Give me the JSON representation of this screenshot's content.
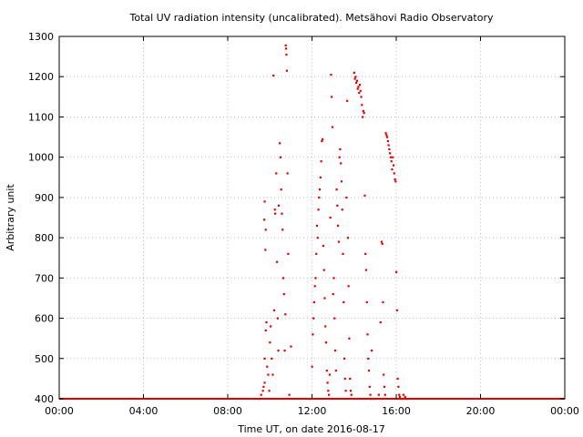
{
  "chart_data": {
    "type": "scatter",
    "title": "Total UV radiation intensity (uncalibrated). Metsähovi Radio Observatory",
    "xlabel": "Time UT, on date 2016-08-17",
    "ylabel": "Arbitrary unit",
    "xlim": [
      "00:00",
      "24:00"
    ],
    "ylim": [
      400,
      1300
    ],
    "x_ticks": [
      "00:00",
      "04:00",
      "08:00",
      "12:00",
      "16:00",
      "20:00",
      "00:00"
    ],
    "y_ticks": [
      "400",
      "500",
      "600",
      "700",
      "800",
      "900",
      "1000",
      "1100",
      "1200",
      "1300"
    ],
    "grid": true,
    "baseline": {
      "value": 400,
      "from": "00:00",
      "to": "24:00"
    },
    "series": [
      {
        "color": "#e00000",
        "points": [
          [
            "09:30",
            400
          ],
          [
            "09:35",
            410
          ],
          [
            "09:40",
            420
          ],
          [
            "09:42",
            430
          ],
          [
            "09:45",
            440
          ],
          [
            "09:45",
            500
          ],
          [
            "09:48",
            570
          ],
          [
            "09:50",
            590
          ],
          [
            "09:52",
            480
          ],
          [
            "09:44",
            845
          ],
          [
            "09:45",
            890
          ],
          [
            "09:47",
            770
          ],
          [
            "09:48",
            820
          ],
          [
            "09:55",
            460
          ],
          [
            "09:58",
            420
          ],
          [
            "10:00",
            540
          ],
          [
            "10:02",
            580
          ],
          [
            "10:05",
            500
          ],
          [
            "10:08",
            460
          ],
          [
            "10:10",
            1203
          ],
          [
            "10:12",
            620
          ],
          [
            "10:14",
            870
          ],
          [
            "10:15",
            860
          ],
          [
            "10:18",
            960
          ],
          [
            "10:20",
            740
          ],
          [
            "10:22",
            600
          ],
          [
            "10:24",
            520
          ],
          [
            "10:25",
            880
          ],
          [
            "10:28",
            1035
          ],
          [
            "10:30",
            1000
          ],
          [
            "10:32",
            920
          ],
          [
            "10:34",
            860
          ],
          [
            "10:36",
            820
          ],
          [
            "10:38",
            700
          ],
          [
            "10:40",
            660
          ],
          [
            "10:42",
            520
          ],
          [
            "10:44",
            610
          ],
          [
            "10:45",
            1278
          ],
          [
            "10:46",
            1270
          ],
          [
            "10:47",
            1255
          ],
          [
            "10:48",
            1215
          ],
          [
            "10:50",
            960
          ],
          [
            "10:52",
            760
          ],
          [
            "10:55",
            410
          ],
          [
            "11:00",
            530
          ],
          [
            "11:55",
            400
          ],
          [
            "12:00",
            480
          ],
          [
            "12:02",
            560
          ],
          [
            "12:04",
            600
          ],
          [
            "12:06",
            640
          ],
          [
            "12:08",
            680
          ],
          [
            "12:10",
            700
          ],
          [
            "12:12",
            760
          ],
          [
            "12:14",
            830
          ],
          [
            "12:16",
            800
          ],
          [
            "12:18",
            870
          ],
          [
            "12:20",
            900
          ],
          [
            "12:22",
            920
          ],
          [
            "12:24",
            950
          ],
          [
            "12:26",
            990
          ],
          [
            "12:28",
            1040
          ],
          [
            "12:30",
            1045
          ],
          [
            "12:32",
            780
          ],
          [
            "12:34",
            720
          ],
          [
            "12:36",
            650
          ],
          [
            "12:38",
            580
          ],
          [
            "12:40",
            540
          ],
          [
            "12:42",
            470
          ],
          [
            "12:44",
            440
          ],
          [
            "12:46",
            420
          ],
          [
            "12:48",
            410
          ],
          [
            "12:50",
            460
          ],
          [
            "12:52",
            850
          ],
          [
            "12:54",
            1205
          ],
          [
            "12:56",
            1150
          ],
          [
            "12:58",
            1075
          ],
          [
            "13:00",
            660
          ],
          [
            "13:02",
            700
          ],
          [
            "13:04",
            600
          ],
          [
            "13:06",
            520
          ],
          [
            "13:08",
            470
          ],
          [
            "13:10",
            920
          ],
          [
            "13:12",
            880
          ],
          [
            "13:14",
            830
          ],
          [
            "13:16",
            790
          ],
          [
            "13:18",
            1000
          ],
          [
            "13:20",
            1020
          ],
          [
            "13:22",
            985
          ],
          [
            "13:24",
            940
          ],
          [
            "13:26",
            870
          ],
          [
            "13:28",
            760
          ],
          [
            "13:30",
            640
          ],
          [
            "13:32",
            500
          ],
          [
            "13:34",
            450
          ],
          [
            "13:36",
            420
          ],
          [
            "13:38",
            900
          ],
          [
            "13:40",
            1140
          ],
          [
            "13:42",
            800
          ],
          [
            "13:44",
            680
          ],
          [
            "13:46",
            550
          ],
          [
            "13:48",
            450
          ],
          [
            "13:50",
            420
          ],
          [
            "13:52",
            410
          ],
          [
            "14:00",
            1210
          ],
          [
            "14:02",
            1195
          ],
          [
            "14:04",
            1200
          ],
          [
            "14:06",
            1185
          ],
          [
            "14:08",
            1190
          ],
          [
            "14:10",
            1170
          ],
          [
            "14:12",
            1175
          ],
          [
            "14:14",
            1160
          ],
          [
            "14:16",
            1180
          ],
          [
            "14:18",
            1165
          ],
          [
            "14:20",
            1150
          ],
          [
            "14:22",
            1130
          ],
          [
            "14:24",
            1100
          ],
          [
            "14:26",
            1115
          ],
          [
            "14:28",
            1110
          ],
          [
            "14:30",
            905
          ],
          [
            "14:32",
            760
          ],
          [
            "14:34",
            720
          ],
          [
            "14:36",
            640
          ],
          [
            "14:38",
            560
          ],
          [
            "14:40",
            500
          ],
          [
            "14:42",
            470
          ],
          [
            "14:44",
            430
          ],
          [
            "14:46",
            410
          ],
          [
            "14:48",
            400
          ],
          [
            "14:50",
            520
          ],
          [
            "15:10",
            410
          ],
          [
            "15:15",
            590
          ],
          [
            "15:18",
            790
          ],
          [
            "15:20",
            785
          ],
          [
            "15:22",
            640
          ],
          [
            "15:24",
            460
          ],
          [
            "15:26",
            430
          ],
          [
            "15:28",
            410
          ],
          [
            "15:30",
            1060
          ],
          [
            "15:32",
            1055
          ],
          [
            "15:34",
            1050
          ],
          [
            "15:36",
            1040
          ],
          [
            "15:38",
            1030
          ],
          [
            "15:40",
            1020
          ],
          [
            "15:42",
            1010
          ],
          [
            "15:44",
            1000
          ],
          [
            "15:46",
            990
          ],
          [
            "15:48",
            970
          ],
          [
            "15:50",
            1000
          ],
          [
            "15:52",
            980
          ],
          [
            "15:54",
            960
          ],
          [
            "15:56",
            945
          ],
          [
            "15:58",
            940
          ],
          [
            "16:00",
            715
          ],
          [
            "16:02",
            620
          ],
          [
            "16:04",
            450
          ],
          [
            "16:06",
            430
          ],
          [
            "16:08",
            410
          ],
          [
            "16:10",
            405
          ],
          [
            "16:15",
            400
          ],
          [
            "16:20",
            410
          ],
          [
            "16:25",
            405
          ],
          [
            "16:30",
            400
          ]
        ]
      }
    ]
  }
}
